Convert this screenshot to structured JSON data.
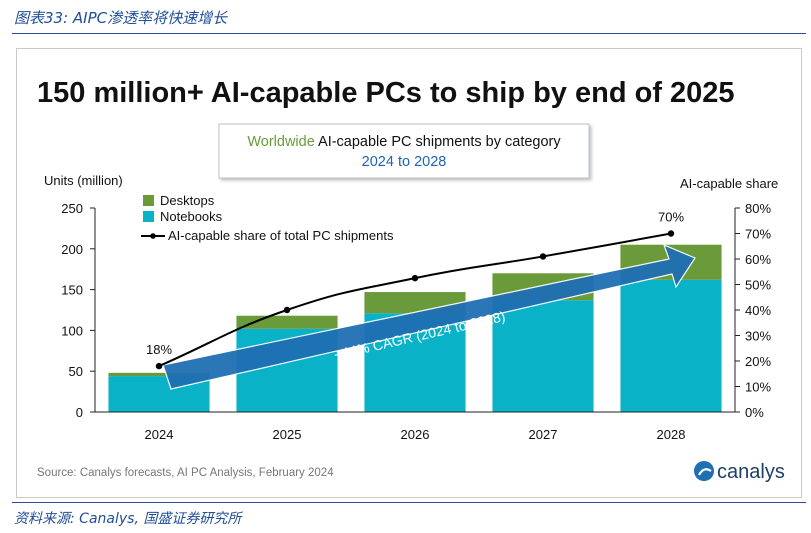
{
  "page": {
    "caption": "图表33: AIPC渗透率将快速增长",
    "source_caption": "资料来源: Canalys, 国盛证券研究所"
  },
  "chart_data": {
    "type": "bar",
    "headline": "150 million+ AI-capable PCs to ship by end of 2025",
    "subtitle_box": {
      "line1_accent": "Worldwide",
      "line1_rest": " AI-capable PC shipments by category",
      "line2": "2024 to 2028"
    },
    "ylabel_left": "Units (million)",
    "ylabel_right": "AI-capable share",
    "ylim": [
      0,
      250
    ],
    "yticks": [
      "0",
      "50",
      "100",
      "150",
      "200",
      "250"
    ],
    "ylim_right": [
      0,
      80
    ],
    "yticks_right": [
      "0%",
      "10%",
      "20%",
      "30%",
      "40%",
      "50%",
      "60%",
      "70%",
      "80%"
    ],
    "categories": [
      "2024",
      "2025",
      "2026",
      "2027",
      "2028"
    ],
    "series": [
      {
        "name": "Desktops",
        "color": "#6a9a3a",
        "values": [
          4,
          16,
          26,
          33,
          43
        ]
      },
      {
        "name": "Notebooks",
        "color": "#0ab2c8",
        "values": [
          44,
          102,
          121,
          137,
          162
        ]
      }
    ],
    "line_series": {
      "name": "AI-capable share of total PC shipments",
      "color": "#000000",
      "values": [
        18,
        40,
        52.5,
        61,
        70
      ]
    },
    "point_labels": [
      {
        "index": 0,
        "text": "18%"
      },
      {
        "index": 4,
        "text": "70%"
      }
    ],
    "arrow_annotation": "+44% CAGR (2024 to 2028)",
    "source": "Source: Canalys forecasts, AI PC Analysis, February 2024",
    "logo_text": "canalys",
    "colors": {
      "accent_green": "#6a9a3a",
      "accent_blue": "#1f63b0",
      "arrow": "#1f6fb3"
    },
    "grid": false,
    "legend_position": "top-left"
  }
}
